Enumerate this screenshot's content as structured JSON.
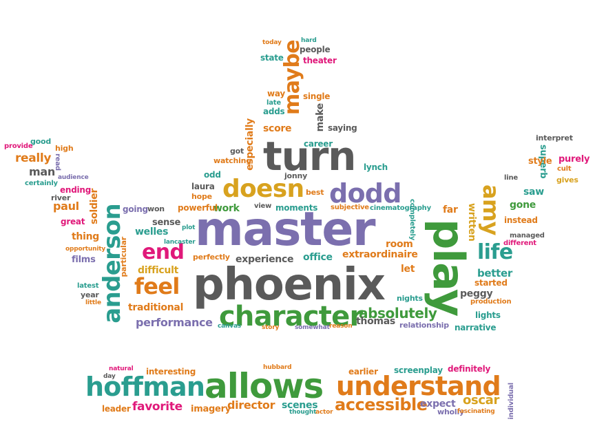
{
  "colors": {
    "purple": "#7b6fae",
    "gray": "#5a5a5a",
    "green": "#3f9a3c",
    "orange": "#e07b1a",
    "yellow": "#d8a21f",
    "pink": "#e0197a",
    "teal": "#2a9d8f",
    "darkgreen": "#2e7d4f"
  },
  "crown": [
    {
      "text": "master",
      "c": "purple"
    },
    {
      "text": "phoenix",
      "c": "gray"
    },
    {
      "text": "turn",
      "c": "gray"
    },
    {
      "text": "character",
      "c": "green"
    },
    {
      "text": "play",
      "c": "green"
    },
    {
      "text": "dodd",
      "c": "purple"
    },
    {
      "text": "doesn",
      "c": "yellow"
    },
    {
      "text": "anderson",
      "c": "teal"
    },
    {
      "text": "feel",
      "c": "orange"
    },
    {
      "text": "end",
      "c": "pink"
    },
    {
      "text": "maybe",
      "c": "orange"
    },
    {
      "text": "amy",
      "c": "yellow"
    },
    {
      "text": "life",
      "c": "teal"
    },
    {
      "text": "absolutely",
      "c": "green"
    },
    {
      "text": "thomas",
      "c": "gray"
    },
    {
      "text": "performance",
      "c": "purple"
    },
    {
      "text": "especially",
      "c": "orange"
    },
    {
      "text": "extraordinaire",
      "c": "orange"
    },
    {
      "text": "welles",
      "c": "teal"
    },
    {
      "text": "traditional",
      "c": "orange"
    },
    {
      "text": "difficult",
      "c": "yellow"
    },
    {
      "text": "room",
      "c": "orange"
    },
    {
      "text": "experience",
      "c": "gray"
    },
    {
      "text": "office",
      "c": "teal"
    },
    {
      "text": "written",
      "c": "yellow"
    },
    {
      "text": "better",
      "c": "teal"
    },
    {
      "text": "peggy",
      "c": "gray"
    },
    {
      "text": "soldier",
      "c": "orange"
    },
    {
      "text": "paul",
      "c": "orange"
    },
    {
      "text": "really",
      "c": "orange"
    },
    {
      "text": "man",
      "c": "gray"
    },
    {
      "text": "films",
      "c": "purple"
    },
    {
      "text": "thing",
      "c": "orange"
    },
    {
      "text": "great",
      "c": "pink"
    },
    {
      "text": "score",
      "c": "orange"
    },
    {
      "text": "make",
      "c": "gray"
    },
    {
      "text": "superb",
      "c": "teal"
    },
    {
      "text": "purely",
      "c": "pink"
    },
    {
      "text": "style",
      "c": "orange"
    },
    {
      "text": "saw",
      "c": "teal"
    },
    {
      "text": "gone",
      "c": "green"
    },
    {
      "text": "instead",
      "c": "orange"
    },
    {
      "text": "lights",
      "c": "teal"
    },
    {
      "text": "started",
      "c": "orange"
    },
    {
      "text": "narrative",
      "c": "teal"
    },
    {
      "text": "relationship",
      "c": "purple"
    },
    {
      "text": "let",
      "c": "orange"
    },
    {
      "text": "sense",
      "c": "gray"
    },
    {
      "text": "work",
      "c": "green"
    },
    {
      "text": "moments",
      "c": "teal"
    },
    {
      "text": "powerful",
      "c": "orange"
    },
    {
      "text": "laura",
      "c": "gray"
    },
    {
      "text": "hope",
      "c": "orange"
    },
    {
      "text": "lynch",
      "c": "teal"
    },
    {
      "text": "best",
      "c": "orange"
    },
    {
      "text": "people",
      "c": "gray"
    },
    {
      "text": "theater",
      "c": "pink"
    },
    {
      "text": "state",
      "c": "teal"
    },
    {
      "text": "single",
      "c": "orange"
    },
    {
      "text": "adds",
      "c": "teal"
    },
    {
      "text": "saying",
      "c": "gray"
    },
    {
      "text": "career",
      "c": "teal"
    },
    {
      "text": "watching",
      "c": "orange"
    },
    {
      "text": "got",
      "c": "gray"
    },
    {
      "text": "odd",
      "c": "teal"
    },
    {
      "text": "going",
      "c": "purple"
    },
    {
      "text": "won",
      "c": "gray"
    },
    {
      "text": "ending",
      "c": "pink"
    },
    {
      "text": "river",
      "c": "gray"
    },
    {
      "text": "high",
      "c": "orange"
    },
    {
      "text": "good",
      "c": "teal"
    },
    {
      "text": "provide",
      "c": "pink"
    },
    {
      "text": "certainly",
      "c": "teal"
    },
    {
      "text": "audience",
      "c": "purple"
    },
    {
      "text": "read",
      "c": "purple"
    },
    {
      "text": "year",
      "c": "gray"
    },
    {
      "text": "latest",
      "c": "teal"
    },
    {
      "text": "little",
      "c": "orange"
    },
    {
      "text": "particular",
      "c": "orange"
    },
    {
      "text": "perfectly",
      "c": "orange"
    },
    {
      "text": "production",
      "c": "orange"
    },
    {
      "text": "managed",
      "c": "gray"
    },
    {
      "text": "different",
      "c": "pink"
    },
    {
      "text": "interpret",
      "c": "gray"
    },
    {
      "text": "cult",
      "c": "orange"
    },
    {
      "text": "gives",
      "c": "yellow"
    },
    {
      "text": "line",
      "c": "gray"
    },
    {
      "text": "far",
      "c": "orange"
    },
    {
      "text": "nights",
      "c": "teal"
    },
    {
      "text": "cinematography",
      "c": "teal"
    },
    {
      "text": "view",
      "c": "gray"
    },
    {
      "text": "subjective",
      "c": "orange"
    },
    {
      "text": "jonny",
      "c": "gray"
    },
    {
      "text": "way",
      "c": "orange"
    },
    {
      "text": "late",
      "c": "teal"
    },
    {
      "text": "today",
      "c": "orange"
    },
    {
      "text": "hard",
      "c": "teal"
    },
    {
      "text": "opportunity",
      "c": "orange"
    },
    {
      "text": "lancaster",
      "c": "teal"
    },
    {
      "text": "plot",
      "c": "teal"
    },
    {
      "text": "completely",
      "c": "teal"
    },
    {
      "text": "canvas",
      "c": "teal"
    },
    {
      "text": "story",
      "c": "orange"
    },
    {
      "text": "reason",
      "c": "orange"
    },
    {
      "text": "somewhat",
      "c": "purple"
    }
  ],
  "base": [
    {
      "text": "allows",
      "c": "green"
    },
    {
      "text": "understand",
      "c": "orange"
    },
    {
      "text": "hoffman",
      "c": "teal"
    },
    {
      "text": "accessible",
      "c": "orange"
    },
    {
      "text": "favorite",
      "c": "pink"
    },
    {
      "text": "director",
      "c": "orange"
    },
    {
      "text": "scenes",
      "c": "teal"
    },
    {
      "text": "oscar",
      "c": "yellow"
    },
    {
      "text": "expect",
      "c": "purple"
    },
    {
      "text": "imagery",
      "c": "orange"
    },
    {
      "text": "leader",
      "c": "orange"
    },
    {
      "text": "interesting",
      "c": "orange"
    },
    {
      "text": "earlier",
      "c": "orange"
    },
    {
      "text": "screenplay",
      "c": "teal"
    },
    {
      "text": "definitely",
      "c": "pink"
    },
    {
      "text": "wholly",
      "c": "purple"
    },
    {
      "text": "fascinating",
      "c": "orange"
    },
    {
      "text": "individual",
      "c": "purple"
    },
    {
      "text": "hubbard",
      "c": "orange"
    },
    {
      "text": "natural",
      "c": "pink"
    },
    {
      "text": "day",
      "c": "gray"
    },
    {
      "text": "thought",
      "c": "teal"
    },
    {
      "text": "actor",
      "c": "orange"
    }
  ]
}
